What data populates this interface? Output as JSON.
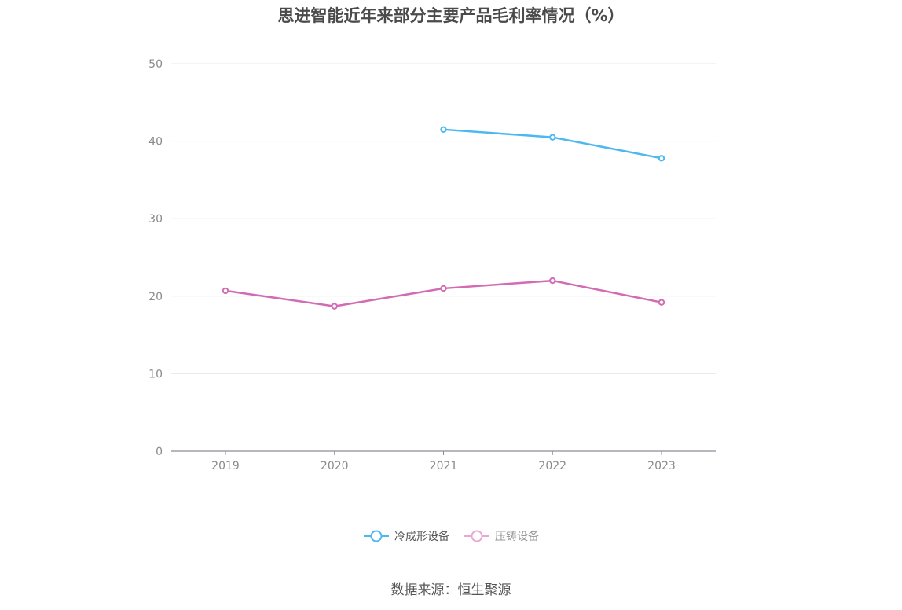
{
  "chart_data": {
    "type": "line",
    "title": "思进智能近年来部分主要产品毛利率情况（%）",
    "xlabel": "",
    "ylabel": "",
    "categories": [
      "2019",
      "2020",
      "2021",
      "2022",
      "2023"
    ],
    "ylim": [
      0,
      50
    ],
    "yticks": [
      0,
      10,
      20,
      30,
      40,
      50
    ],
    "grid": true,
    "legend_position": "bottom",
    "series": [
      {
        "name": "冷成形设备",
        "color": "#4db8ef",
        "values": [
          null,
          null,
          41.5,
          40.5,
          37.8
        ]
      },
      {
        "name": "压铸设备",
        "color": "#d36bb4",
        "values": [
          20.7,
          18.7,
          21.0,
          22.0,
          19.2
        ]
      }
    ]
  },
  "legend": {
    "items": [
      {
        "label": "冷成形设备",
        "color": "#4db8ef",
        "text_color": "#555555"
      },
      {
        "label": "压铸设备",
        "color": "#e9a7d4",
        "text_color": "#999999"
      }
    ]
  },
  "source": "数据来源：恒生聚源"
}
